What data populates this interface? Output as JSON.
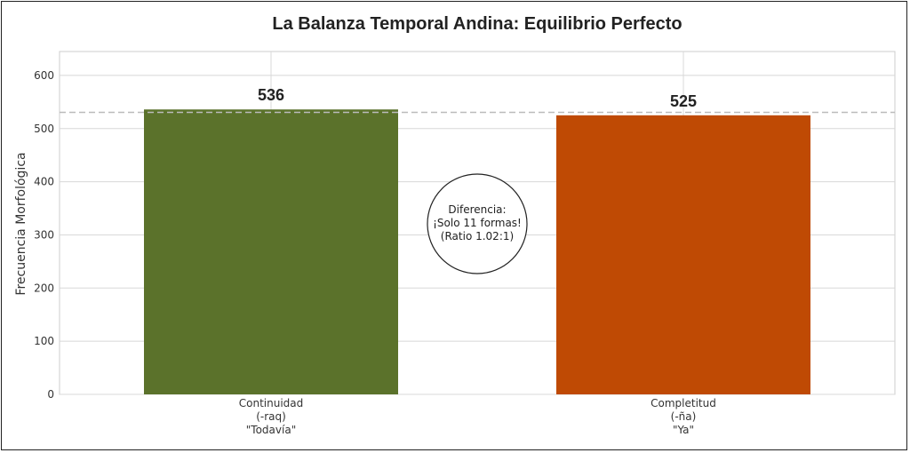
{
  "chart_data": {
    "type": "bar",
    "title": "La Balanza Temporal Andina: Equilibrio Perfecto",
    "xlabel": "",
    "ylabel": "Frecuencia Morfológica",
    "ylim": [
      0,
      645
    ],
    "yticks": [
      0,
      100,
      200,
      300,
      400,
      500,
      600
    ],
    "grid": true,
    "categories": [
      [
        "Continuidad",
        "(-raq)",
        "\"Todavía\""
      ],
      [
        "Completitud",
        "(-ña)",
        "\"Ya\""
      ]
    ],
    "values": [
      536,
      525
    ],
    "value_labels": [
      "536",
      "525"
    ],
    "colors": [
      "#5b722b",
      "#bf4a04"
    ],
    "reference_line": 530.5,
    "annotation": [
      "Diferencia:",
      "¡Solo 11 formas!",
      "(Ratio 1.02:1)"
    ]
  }
}
